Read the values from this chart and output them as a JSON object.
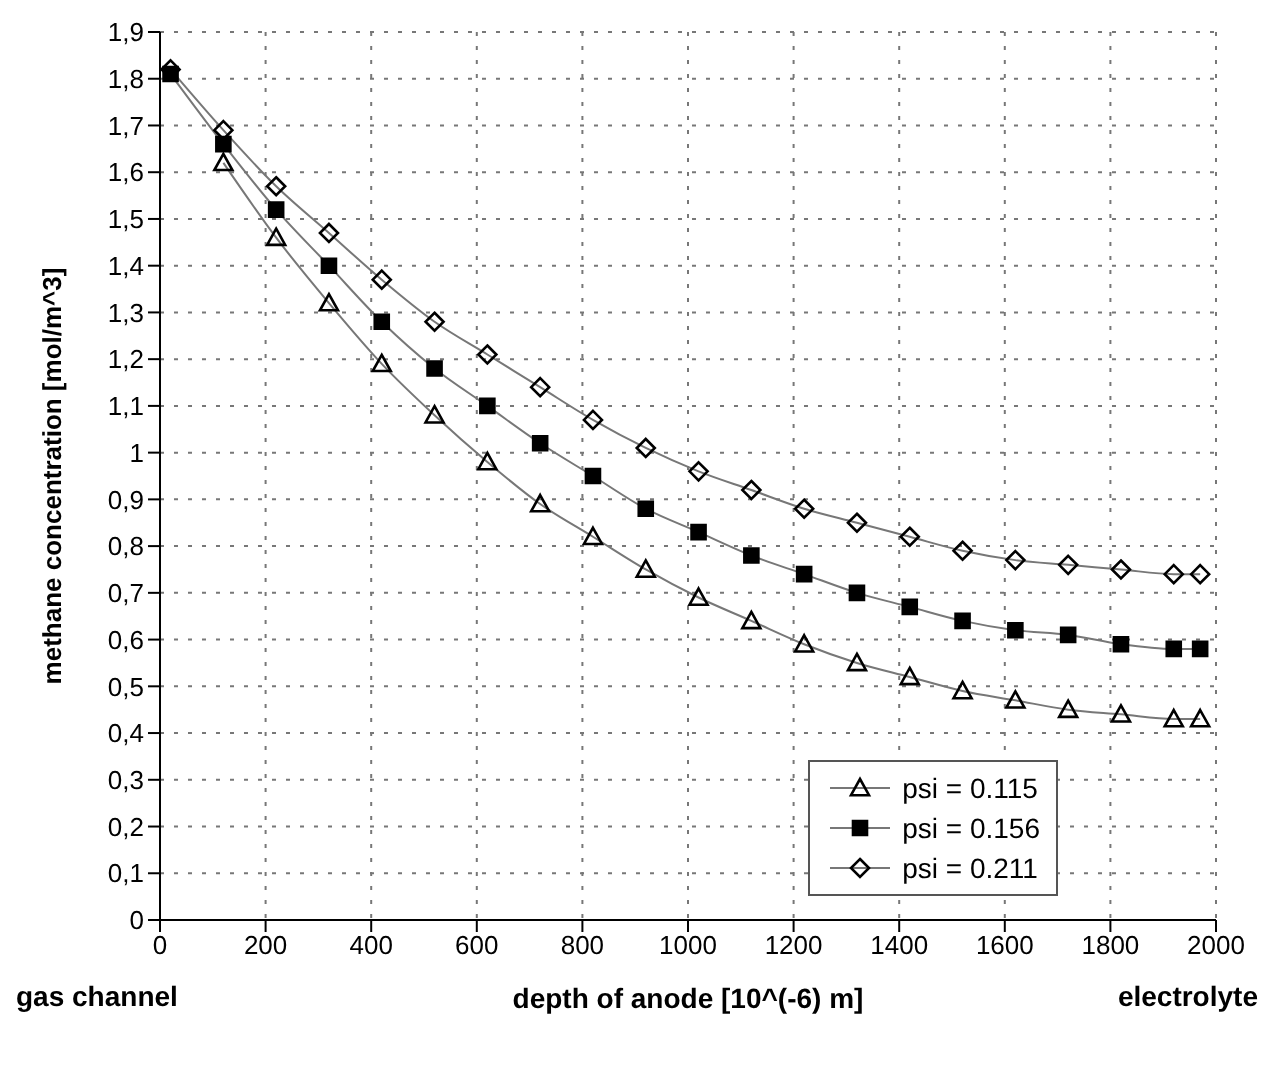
{
  "chart_data": {
    "type": "line",
    "xlabel": "depth of anode [10^(-6) m]",
    "ylabel": "methane concentration [mol/m^3]",
    "annotations": [
      "gas channel",
      "electrolyte"
    ],
    "x": [
      20,
      120,
      220,
      320,
      420,
      520,
      620,
      720,
      820,
      920,
      1020,
      1120,
      1220,
      1320,
      1420,
      1520,
      1620,
      1720,
      1820,
      1920,
      1970
    ],
    "series": [
      {
        "name": "psi = 0.115",
        "color": "#000000",
        "marker": "triangle",
        "values": [
          null,
          1.62,
          1.46,
          1.32,
          1.19,
          1.08,
          0.98,
          0.89,
          0.82,
          0.75,
          0.69,
          0.64,
          0.59,
          0.55,
          0.52,
          0.49,
          0.47,
          0.45,
          0.44,
          0.43,
          0.43
        ]
      },
      {
        "name": "psi = 0.156",
        "color": "#000000",
        "marker": "square",
        "values": [
          1.81,
          1.66,
          1.52,
          1.4,
          1.28,
          1.18,
          1.1,
          1.02,
          0.95,
          0.88,
          0.83,
          0.78,
          0.74,
          0.7,
          0.67,
          0.64,
          0.62,
          0.61,
          0.59,
          0.58,
          0.58
        ]
      },
      {
        "name": "psi = 0.211",
        "color": "#000000",
        "marker": "diamond",
        "values": [
          1.82,
          1.69,
          1.57,
          1.47,
          1.37,
          1.28,
          1.21,
          1.14,
          1.07,
          1.01,
          0.96,
          0.92,
          0.88,
          0.85,
          0.82,
          0.79,
          0.77,
          0.76,
          0.75,
          0.74,
          0.74
        ]
      }
    ],
    "xlim": [
      0,
      2000
    ],
    "xticks": [
      0,
      200,
      400,
      600,
      800,
      1000,
      1200,
      1400,
      1600,
      1800,
      2000
    ],
    "ylim": [
      0,
      1.9
    ],
    "yticks": [
      0,
      {
        "value": 0.1,
        "label": "0,1"
      },
      {
        "value": 0.2,
        "label": "0,2"
      },
      {
        "value": 0.3,
        "label": "0,3"
      },
      {
        "value": 0.4,
        "label": "0,4"
      },
      {
        "value": 0.5,
        "label": "0,5"
      },
      {
        "value": 0.6,
        "label": "0,6"
      },
      {
        "value": 0.7,
        "label": "0,7"
      },
      {
        "value": 0.8,
        "label": "0,8"
      },
      {
        "value": 0.9,
        "label": "0,9"
      },
      1,
      {
        "value": 1.1,
        "label": "1,1"
      },
      {
        "value": 1.2,
        "label": "1,2"
      },
      {
        "value": 1.3,
        "label": "1,3"
      },
      {
        "value": 1.4,
        "label": "1,4"
      },
      {
        "value": 1.5,
        "label": "1,5"
      },
      {
        "value": 1.6,
        "label": "1,6"
      },
      {
        "value": 1.7,
        "label": "1,7"
      },
      {
        "value": 1.8,
        "label": "1,8"
      },
      {
        "value": 1.9,
        "label": "1,9"
      }
    ],
    "grid": true,
    "legend": "bottom right",
    "line_style": "solid"
  }
}
